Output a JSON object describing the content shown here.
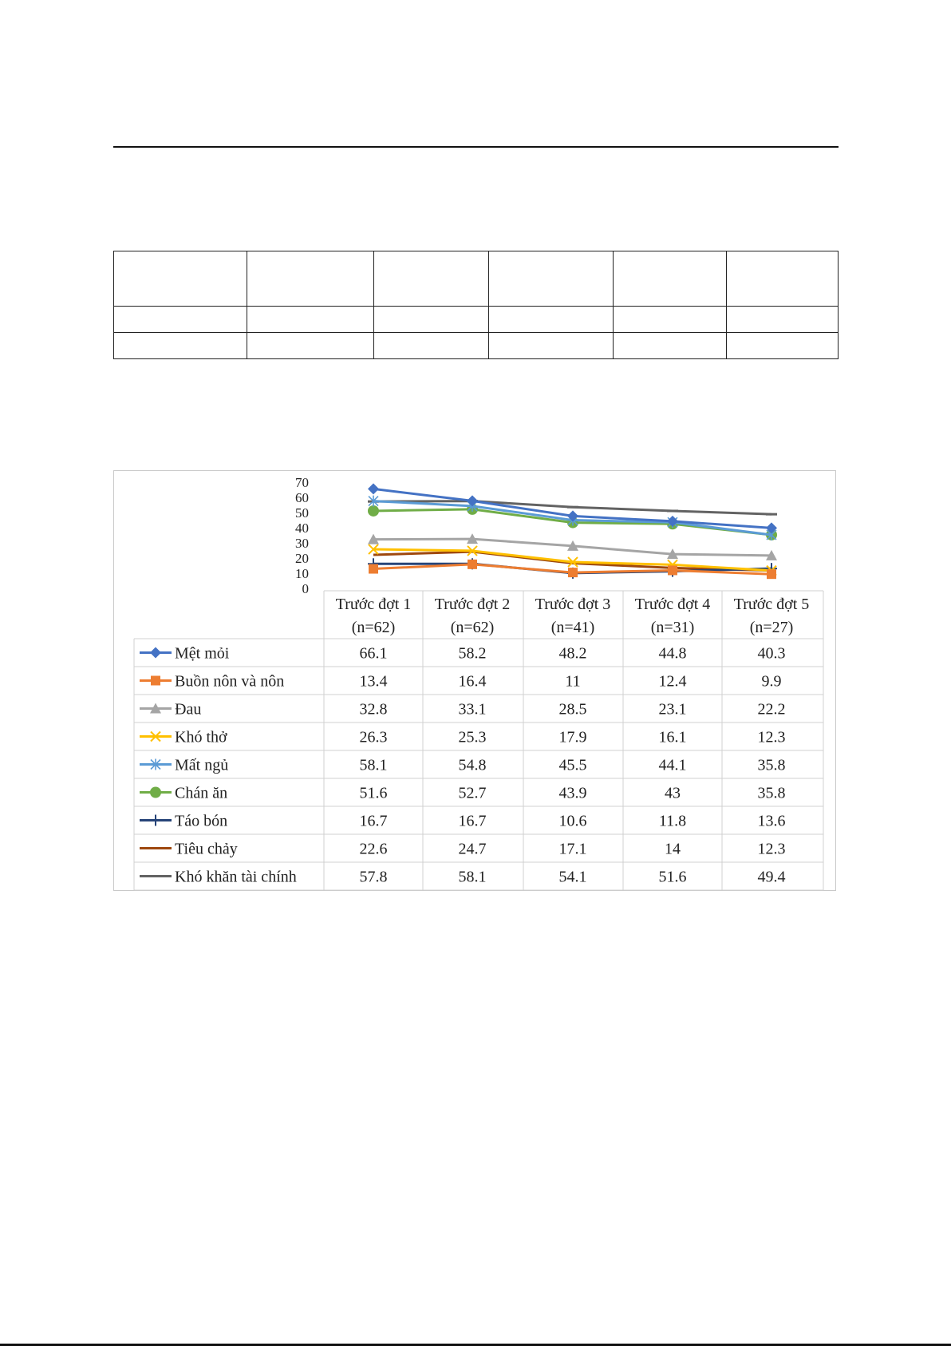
{
  "chart_data": {
    "type": "line",
    "categories": [
      [
        "Trước đợt 1",
        "(n=62)"
      ],
      [
        "Trước đợt 2",
        "(n=62)"
      ],
      [
        "Trước đợt 3",
        "(n=41)"
      ],
      [
        "Trước đợt 4",
        "(n=31)"
      ],
      [
        "Trước đợt 5",
        "(n=27)"
      ]
    ],
    "ylim": [
      0,
      70
    ],
    "yticks": [
      "70",
      "60",
      "50",
      "40",
      "30",
      "20",
      "10",
      "0"
    ],
    "grid": false,
    "legend": "data-table",
    "series": [
      {
        "name": "Mệt mỏi",
        "values": [
          66.1,
          58.2,
          48.2,
          44.8,
          40.3
        ],
        "labels": [
          "66.1",
          "58.2",
          "48.2",
          "44.8",
          "40.3"
        ],
        "color": "#4472C4",
        "marker": "diamond"
      },
      {
        "name": "Buồn nôn và nôn",
        "values": [
          13.4,
          16.4,
          11,
          12.4,
          9.9
        ],
        "labels": [
          "13.4",
          "16.4",
          "11",
          "12.4",
          "9.9"
        ],
        "color": "#ED7D31",
        "marker": "square"
      },
      {
        "name": "Đau",
        "values": [
          32.8,
          33.1,
          28.5,
          23.1,
          22.2
        ],
        "labels": [
          "32.8",
          "33.1",
          "28.5",
          "23.1",
          "22.2"
        ],
        "color": "#A5A5A5",
        "marker": "triangle"
      },
      {
        "name": "Khó thở",
        "values": [
          26.3,
          25.3,
          17.9,
          16.1,
          12.3
        ],
        "labels": [
          "26.3",
          "25.3",
          "17.9",
          "16.1",
          "12.3"
        ],
        "color": "#FFC000",
        "marker": "x"
      },
      {
        "name": "Mất ngủ",
        "values": [
          58.1,
          54.8,
          45.5,
          44.1,
          35.8
        ],
        "labels": [
          "58.1",
          "54.8",
          "45.5",
          "44.1",
          "35.8"
        ],
        "color": "#5B9BD5",
        "marker": "star"
      },
      {
        "name": "Chán ăn",
        "values": [
          51.6,
          52.7,
          43.9,
          43,
          35.8
        ],
        "labels": [
          "51.6",
          "52.7",
          "43.9",
          "43",
          "35.8"
        ],
        "color": "#70AD47",
        "marker": "circle"
      },
      {
        "name": "Táo bón",
        "values": [
          16.7,
          16.7,
          10.6,
          11.8,
          13.6
        ],
        "labels": [
          "16.7",
          "16.7",
          "10.6",
          "11.8",
          "13.6"
        ],
        "color": "#264478",
        "marker": "plus"
      },
      {
        "name": "Tiêu chảy",
        "values": [
          22.6,
          24.7,
          17.1,
          14,
          12.3
        ],
        "labels": [
          "22.6",
          "24.7",
          "17.1",
          "14",
          "12.3"
        ],
        "color": "#9E480E",
        "marker": "none"
      },
      {
        "name": "Khó khăn tài chính",
        "values": [
          57.8,
          58.1,
          54.1,
          51.6,
          49.4
        ],
        "labels": [
          "57.8",
          "58.1",
          "54.1",
          "51.6",
          "49.4"
        ],
        "color": "#636363",
        "marker": "dash"
      }
    ]
  }
}
